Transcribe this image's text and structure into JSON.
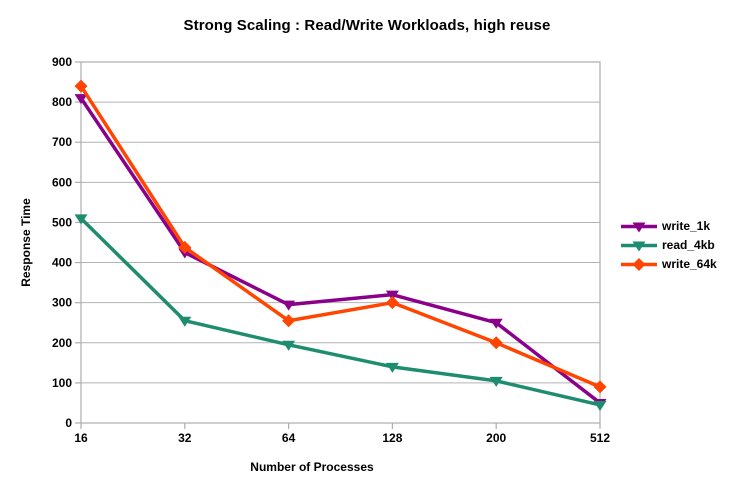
{
  "title": "Strong Scaling : Read/Write Workloads, high reuse",
  "chart_data": {
    "type": "line",
    "title": "Strong Scaling : Read/Write Workloads, high reuse",
    "xlabel": "Number of Processes",
    "ylabel": "Response Time",
    "categories": [
      "16",
      "32",
      "64",
      "128",
      "200",
      "512"
    ],
    "x_axis_type": "categorical",
    "ylim": [
      0,
      900
    ],
    "y_tick_step": 100,
    "y_ticks": [
      0,
      100,
      200,
      300,
      400,
      500,
      600,
      700,
      800,
      900
    ],
    "grid": "horizontal",
    "legend_position": "right-outside",
    "series": [
      {
        "name": "write_1k",
        "color": "#8B008B",
        "marker": "triangle-down",
        "values": [
          810,
          425,
          295,
          320,
          250,
          50
        ]
      },
      {
        "name": "read_4kb",
        "color": "#1E8C6E",
        "marker": "triangle-down",
        "values": [
          510,
          255,
          195,
          140,
          105,
          45
        ]
      },
      {
        "name": "write_64k",
        "color": "#FF4500",
        "marker": "diamond",
        "values": [
          840,
          438,
          255,
          300,
          200,
          90
        ]
      }
    ]
  },
  "colors": {
    "grid": "#B3B3B3",
    "border": "#ADADAD",
    "text": "#000000",
    "background": "#FFFFFF"
  }
}
